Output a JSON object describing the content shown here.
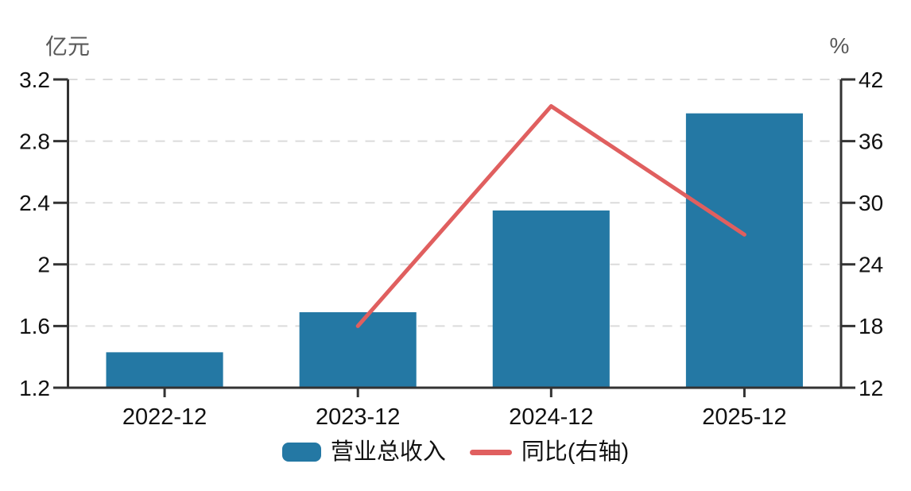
{
  "chart_data": {
    "type": "bar+line combo, dual y-axis",
    "categories": [
      "2022-12",
      "2023-12",
      "2024-12",
      "2025-12"
    ],
    "series": [
      {
        "name": "营业总收入",
        "type": "bar",
        "axis": "left",
        "values": [
          1.43,
          1.69,
          2.35,
          2.98
        ]
      },
      {
        "name": "同比(右轴)",
        "type": "line",
        "axis": "right",
        "values": [
          null,
          18.0,
          39.4,
          26.9
        ]
      }
    ],
    "left_axis": {
      "title": "亿元",
      "min": 1.2,
      "max": 3.2,
      "ticks": [
        3.2,
        2.8,
        2.4,
        2,
        1.6,
        1.2
      ]
    },
    "right_axis": {
      "title": "%",
      "min": 12,
      "max": 42,
      "ticks": [
        42,
        36,
        30,
        24,
        18,
        12
      ]
    },
    "grid": "horizontal dashed",
    "legend_position": "bottom"
  },
  "colors": {
    "bar": "#2478A4",
    "line": "#E05F5F",
    "axis": "#333333",
    "grid": "#DBDBDB",
    "tick_label": "#111111",
    "axis_title": "#595959",
    "background": "#FFFFFF"
  }
}
